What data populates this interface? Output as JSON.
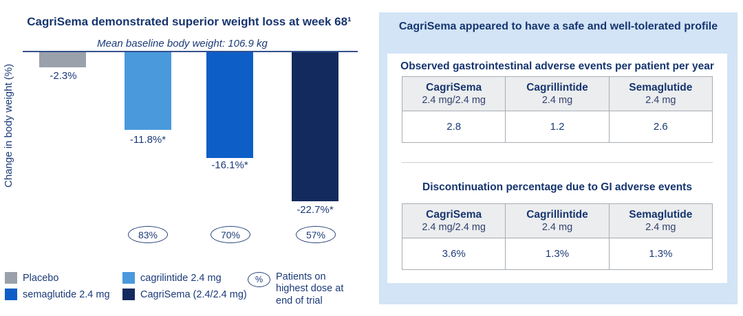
{
  "colors": {
    "accent_navy": "#17356f",
    "panel_bg": "#d2e4f6",
    "table_header_bg": "#ebedee"
  },
  "chart": {
    "title": "CagriSema demonstrated superior weight loss at week 68¹",
    "subtitle": "Mean baseline body weight: 106.9 kg",
    "y_axis_label": "Change in body weight (%)"
  },
  "chart_data": {
    "type": "bar",
    "title": "CagriSema demonstrated superior weight loss at week 68¹",
    "subtitle": "Mean baseline body weight: 106.9 kg",
    "ylabel": "Change in body weight (%)",
    "categories": [
      "Placebo",
      "cagrilintide 2.4 mg",
      "semaglutide 2.4 mg",
      "CagriSema (2.4/2.4 mg)"
    ],
    "values": [
      -2.3,
      -11.8,
      -16.1,
      -22.7
    ],
    "bar_labels": [
      "-2.3%",
      "-11.8%*",
      "-16.1%*",
      "-22.7%*"
    ],
    "colors": [
      "#9aa1ab",
      "#4a99dd",
      "#0e5ec8",
      "#132a5e"
    ],
    "patients_on_highest_dose": [
      "83%",
      "70%",
      "57%"
    ],
    "ylim": [
      -25,
      0
    ],
    "grid": false,
    "legend_position": "bottom"
  },
  "legend": {
    "items": [
      {
        "label": "Placebo",
        "color_index": 0
      },
      {
        "label": "semaglutide 2.4 mg",
        "color_index": 2
      },
      {
        "label": "cagrilintide 2.4 mg",
        "color_index": 1
      },
      {
        "label": "CagriSema (2.4/2.4 mg)",
        "color_index": 3
      }
    ],
    "pct_icon": "%",
    "pct_label": "Patients on highest dose at end of trial"
  },
  "safety": {
    "title": "CagriSema appeared to have a safe and well-tolerated profile",
    "tables": [
      {
        "heading": "Observed gastrointestinal adverse events per patient per year",
        "columns": [
          {
            "name": "CagriSema",
            "dose": "2.4 mg/2.4 mg"
          },
          {
            "name": "Cagrillintide",
            "dose": "2.4 mg"
          },
          {
            "name": "Semaglutide",
            "dose": "2.4 mg"
          }
        ],
        "values": [
          "2.8",
          "1.2",
          "2.6"
        ]
      },
      {
        "heading": "Discontinuation percentage due to GI adverse events",
        "columns": [
          {
            "name": "CagriSema",
            "dose": "2.4 mg/2.4 mg"
          },
          {
            "name": "Cagrillintide",
            "dose": "2.4 mg"
          },
          {
            "name": "Semaglutide",
            "dose": "2.4 mg"
          }
        ],
        "values": [
          "3.6%",
          "1.3%",
          "1.3%"
        ]
      }
    ]
  }
}
